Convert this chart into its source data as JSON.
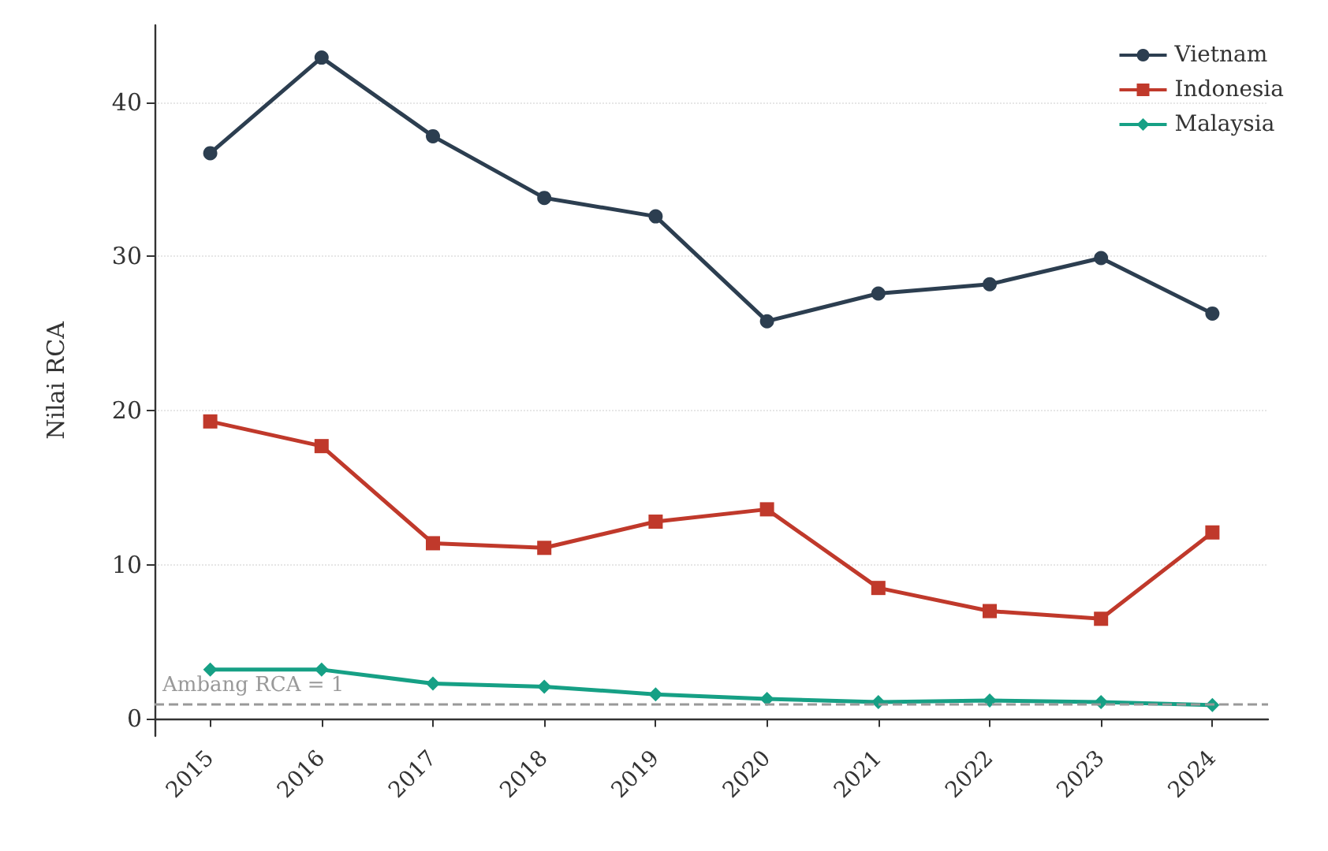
{
  "chart_data": {
    "type": "line",
    "ylabel": "Nilai RCA",
    "categories": [
      "2015",
      "2016",
      "2017",
      "2018",
      "2019",
      "2020",
      "2021",
      "2022",
      "2023",
      "2024"
    ],
    "series": [
      {
        "name": "Vietnam",
        "color": "#2c3e50",
        "marker": "circle",
        "values": [
          36.7,
          42.9,
          37.8,
          33.8,
          32.6,
          25.8,
          27.6,
          28.2,
          29.9,
          26.3
        ]
      },
      {
        "name": "Indonesia",
        "color": "#c0392b",
        "marker": "square",
        "values": [
          19.3,
          17.7,
          11.4,
          11.1,
          12.8,
          13.6,
          8.5,
          7.0,
          6.5,
          12.1
        ]
      },
      {
        "name": "Malaysia",
        "color": "#16a085",
        "marker": "diamond",
        "values": [
          3.2,
          3.2,
          2.3,
          2.1,
          1.6,
          1.3,
          1.1,
          1.2,
          1.1,
          0.9
        ]
      }
    ],
    "ylim": [
      -1.1,
      45
    ],
    "yticks": [
      0,
      10,
      20,
      30,
      40
    ],
    "grid": "y",
    "legend": "top right",
    "line_style": "solid",
    "ref_lines": [
      {
        "axis": "y",
        "value": 1,
        "label": "Ambang RCA = 1",
        "color": "#999999",
        "line_style": "dashed"
      }
    ]
  }
}
